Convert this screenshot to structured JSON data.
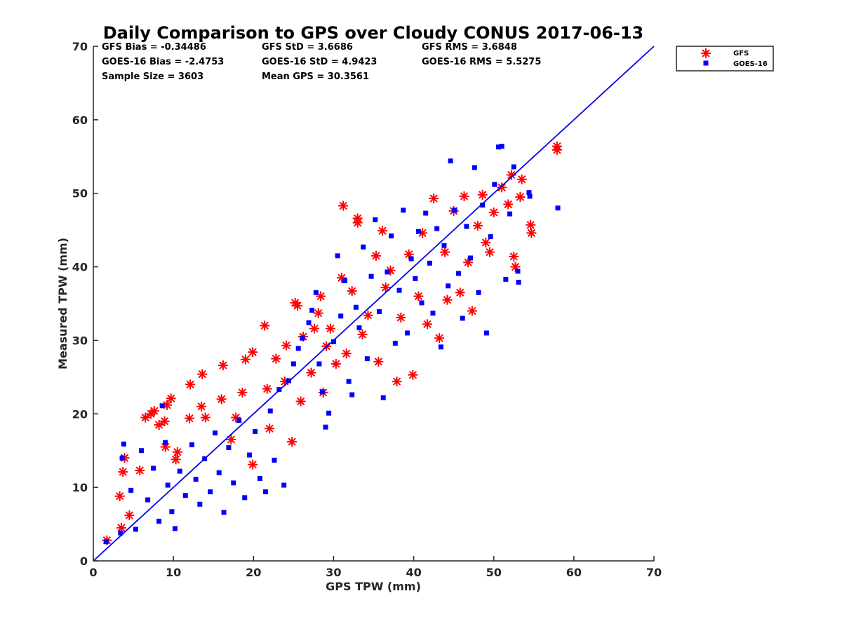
{
  "chart_data": {
    "type": "scatter",
    "title": "Daily Comparison to GPS over Cloudy CONUS 2017-06-13",
    "xlabel": "GPS TPW (mm)",
    "ylabel": "Measured TPW (mm)",
    "xlim": [
      0,
      70
    ],
    "ylim": [
      0,
      70
    ],
    "xticks": [
      "0",
      "10",
      "20",
      "30",
      "40",
      "50",
      "60",
      "70"
    ],
    "yticks": [
      "0",
      "10",
      "20",
      "30",
      "40",
      "50",
      "60",
      "70"
    ],
    "grid": false,
    "legend_position": "outside top-right",
    "reference_line": {
      "x": [
        0,
        70
      ],
      "y": [
        0,
        70
      ],
      "color": "#0000ee"
    },
    "stats": [
      [
        "GFS Bias = -0.34486",
        "GFS StD = 3.6686",
        "GFS RMS = 3.6848"
      ],
      [
        "GOES-16 Bias = -2.4753",
        "GOES-16 StD = 4.9423",
        "GOES-16 RMS = 5.5275"
      ],
      [
        "Sample Size = 3603",
        "Mean GPS = 30.3561",
        ""
      ]
    ],
    "series": [
      {
        "name": "GFS",
        "marker": "asterisk",
        "color": "#ff0000",
        "points": [
          [
            1.7,
            2.8
          ],
          [
            3.5,
            4.5
          ],
          [
            3.3,
            8.8
          ],
          [
            3.7,
            12.1
          ],
          [
            3.9,
            14.0
          ],
          [
            4.5,
            6.2
          ],
          [
            5.8,
            12.3
          ],
          [
            6.5,
            19.5
          ],
          [
            7.2,
            20.0
          ],
          [
            7.6,
            20.4
          ],
          [
            8.2,
            18.5
          ],
          [
            8.9,
            19.0
          ],
          [
            9.2,
            21.2
          ],
          [
            9.7,
            22.1
          ],
          [
            9.0,
            15.5
          ],
          [
            10.5,
            14.8
          ],
          [
            10.3,
            13.8
          ],
          [
            12.0,
            19.4
          ],
          [
            12.1,
            24.0
          ],
          [
            13.6,
            25.4
          ],
          [
            13.5,
            21.0
          ],
          [
            14.0,
            19.5
          ],
          [
            16.0,
            22.0
          ],
          [
            16.2,
            26.6
          ],
          [
            17.2,
            16.5
          ],
          [
            17.8,
            19.5
          ],
          [
            18.6,
            22.9
          ],
          [
            19.0,
            27.4
          ],
          [
            19.9,
            28.4
          ],
          [
            19.9,
            13.1
          ],
          [
            21.4,
            32.0
          ],
          [
            21.7,
            23.4
          ],
          [
            22.0,
            18.0
          ],
          [
            22.8,
            27.5
          ],
          [
            23.9,
            24.4
          ],
          [
            24.1,
            29.3
          ],
          [
            24.8,
            16.2
          ],
          [
            25.2,
            35.1
          ],
          [
            25.5,
            34.7
          ],
          [
            25.9,
            21.7
          ],
          [
            26.2,
            30.5
          ],
          [
            27.2,
            25.6
          ],
          [
            27.6,
            31.6
          ],
          [
            28.1,
            33.7
          ],
          [
            28.4,
            36.0
          ],
          [
            28.7,
            22.9
          ],
          [
            29.1,
            29.2
          ],
          [
            29.6,
            31.6
          ],
          [
            30.3,
            26.8
          ],
          [
            31.0,
            38.5
          ],
          [
            31.2,
            48.3
          ],
          [
            31.6,
            28.2
          ],
          [
            32.3,
            36.7
          ],
          [
            33.0,
            46.6
          ],
          [
            33.0,
            46.0
          ],
          [
            33.6,
            30.8
          ],
          [
            34.3,
            33.4
          ],
          [
            35.3,
            41.5
          ],
          [
            35.6,
            27.1
          ],
          [
            36.1,
            44.9
          ],
          [
            36.5,
            37.2
          ],
          [
            37.1,
            39.5
          ],
          [
            37.9,
            24.4
          ],
          [
            38.4,
            33.1
          ],
          [
            39.4,
            41.7
          ],
          [
            39.9,
            25.3
          ],
          [
            40.6,
            36.0
          ],
          [
            41.1,
            44.6
          ],
          [
            41.7,
            32.2
          ],
          [
            42.5,
            49.3
          ],
          [
            43.2,
            30.3
          ],
          [
            43.9,
            42.0
          ],
          [
            44.2,
            35.5
          ],
          [
            45.0,
            47.6
          ],
          [
            45.8,
            36.5
          ],
          [
            46.3,
            49.6
          ],
          [
            46.8,
            40.6
          ],
          [
            47.3,
            34.0
          ],
          [
            48.0,
            45.6
          ],
          [
            48.6,
            49.8
          ],
          [
            49.0,
            43.3
          ],
          [
            49.5,
            42.0
          ],
          [
            50.0,
            47.4
          ],
          [
            51.0,
            50.8
          ],
          [
            51.8,
            48.5
          ],
          [
            52.2,
            52.5
          ],
          [
            52.5,
            41.4
          ],
          [
            52.7,
            40.0
          ],
          [
            53.3,
            49.5
          ],
          [
            53.5,
            51.9
          ],
          [
            54.6,
            45.7
          ],
          [
            54.7,
            44.6
          ],
          [
            57.9,
            56.4
          ],
          [
            57.9,
            55.9
          ]
        ]
      },
      {
        "name": "GOES-16",
        "marker": "square",
        "color": "#0000ff",
        "points": [
          [
            1.6,
            2.6
          ],
          [
            3.4,
            3.8
          ],
          [
            3.6,
            14.0
          ],
          [
            3.8,
            15.9
          ],
          [
            4.7,
            9.6
          ],
          [
            5.3,
            4.3
          ],
          [
            6.0,
            15.0
          ],
          [
            6.8,
            8.3
          ],
          [
            7.5,
            12.6
          ],
          [
            8.2,
            5.4
          ],
          [
            8.6,
            21.1
          ],
          [
            9.0,
            16.1
          ],
          [
            9.3,
            10.3
          ],
          [
            9.8,
            6.7
          ],
          [
            10.2,
            4.4
          ],
          [
            10.8,
            12.2
          ],
          [
            11.5,
            8.9
          ],
          [
            12.3,
            15.8
          ],
          [
            12.8,
            11.1
          ],
          [
            13.3,
            7.7
          ],
          [
            13.9,
            13.9
          ],
          [
            14.6,
            9.4
          ],
          [
            15.2,
            17.4
          ],
          [
            15.7,
            12.0
          ],
          [
            16.3,
            6.6
          ],
          [
            16.9,
            15.4
          ],
          [
            17.5,
            10.6
          ],
          [
            18.2,
            19.1
          ],
          [
            18.9,
            8.6
          ],
          [
            19.5,
            14.4
          ],
          [
            20.2,
            17.6
          ],
          [
            20.8,
            11.2
          ],
          [
            21.5,
            9.4
          ],
          [
            22.1,
            20.4
          ],
          [
            22.6,
            13.7
          ],
          [
            23.2,
            23.3
          ],
          [
            23.8,
            10.3
          ],
          [
            24.4,
            24.5
          ],
          [
            25.0,
            26.8
          ],
          [
            25.6,
            28.9
          ],
          [
            26.1,
            30.3
          ],
          [
            26.9,
            32.4
          ],
          [
            27.3,
            34.1
          ],
          [
            27.8,
            36.5
          ],
          [
            28.2,
            26.8
          ],
          [
            28.6,
            23.0
          ],
          [
            29.0,
            18.2
          ],
          [
            29.4,
            20.1
          ],
          [
            30.0,
            29.8
          ],
          [
            30.5,
            41.5
          ],
          [
            30.9,
            33.3
          ],
          [
            31.4,
            38.1
          ],
          [
            31.9,
            24.4
          ],
          [
            32.3,
            22.6
          ],
          [
            32.8,
            34.5
          ],
          [
            33.2,
            31.7
          ],
          [
            33.7,
            42.7
          ],
          [
            34.2,
            27.5
          ],
          [
            34.7,
            38.7
          ],
          [
            35.2,
            46.4
          ],
          [
            35.7,
            33.9
          ],
          [
            36.2,
            22.2
          ],
          [
            36.7,
            39.3
          ],
          [
            37.2,
            44.2
          ],
          [
            37.7,
            29.6
          ],
          [
            38.2,
            36.8
          ],
          [
            38.7,
            47.7
          ],
          [
            39.2,
            31.0
          ],
          [
            39.7,
            41.1
          ],
          [
            40.2,
            38.4
          ],
          [
            40.6,
            44.8
          ],
          [
            41.0,
            35.1
          ],
          [
            41.5,
            47.3
          ],
          [
            42.0,
            40.5
          ],
          [
            42.4,
            33.7
          ],
          [
            42.9,
            45.2
          ],
          [
            43.4,
            29.1
          ],
          [
            43.8,
            42.9
          ],
          [
            44.3,
            37.4
          ],
          [
            44.6,
            54.4
          ],
          [
            45.1,
            47.7
          ],
          [
            45.6,
            39.1
          ],
          [
            46.1,
            33.0
          ],
          [
            46.6,
            45.5
          ],
          [
            47.1,
            41.2
          ],
          [
            47.6,
            53.5
          ],
          [
            48.1,
            36.5
          ],
          [
            48.6,
            48.4
          ],
          [
            49.1,
            31.0
          ],
          [
            49.6,
            44.1
          ],
          [
            50.1,
            51.2
          ],
          [
            50.6,
            56.3
          ],
          [
            51.0,
            56.4
          ],
          [
            51.5,
            38.3
          ],
          [
            52.0,
            47.2
          ],
          [
            52.5,
            53.6
          ],
          [
            53.0,
            39.4
          ],
          [
            53.1,
            37.9
          ],
          [
            54.4,
            50.1
          ],
          [
            54.5,
            49.6
          ],
          [
            58.0,
            48.0
          ]
        ]
      }
    ]
  }
}
